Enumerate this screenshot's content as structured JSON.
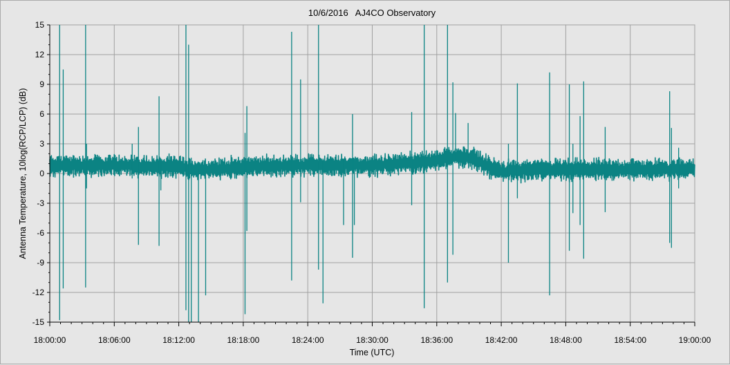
{
  "chart_data": {
    "type": "line",
    "title": "10/6/2016   AJ4CO Observatory",
    "xlabel": "Time (UTC)",
    "ylabel": "Antenna Temperature, 10log(RCP/LCP) (dB)",
    "xlim": [
      "18:00:00",
      "19:00:00"
    ],
    "x_tick_labels": [
      "18:00:00",
      "18:06:00",
      "18:12:00",
      "18:18:00",
      "18:24:00",
      "18:30:00",
      "18:36:00",
      "18:42:00",
      "18:48:00",
      "18:54:00",
      "19:00:00"
    ],
    "ylim": [
      -15,
      15
    ],
    "y_ticks": [
      15,
      12,
      9,
      6,
      3,
      0,
      -3,
      -6,
      -9,
      -12,
      -15
    ],
    "grid": true,
    "line_color": "#0b8383",
    "series": [
      {
        "baseline": [
          {
            "t": "18:00:00",
            "db": 0.8
          },
          {
            "t": "18:06:00",
            "db": 0.8
          },
          {
            "t": "18:12:00",
            "db": 0.7
          },
          {
            "t": "18:13:30",
            "db": 0.4
          },
          {
            "t": "18:15:00",
            "db": 0.4
          },
          {
            "t": "18:18:00",
            "db": 0.7
          },
          {
            "t": "18:24:00",
            "db": 0.8
          },
          {
            "t": "18:30:00",
            "db": 0.8
          },
          {
            "t": "18:33:00",
            "db": 1.0
          },
          {
            "t": "18:36:00",
            "db": 1.3
          },
          {
            "t": "18:38:00",
            "db": 1.7
          },
          {
            "t": "18:39:30",
            "db": 1.5
          },
          {
            "t": "18:41:00",
            "db": 0.6
          },
          {
            "t": "18:42:00",
            "db": 0.2
          },
          {
            "t": "18:45:00",
            "db": 0.4
          },
          {
            "t": "18:48:00",
            "db": 0.4
          },
          {
            "t": "18:54:00",
            "db": 0.4
          },
          {
            "t": "18:57:00",
            "db": 0.4
          },
          {
            "t": "19:00:00",
            "db": 0.5
          }
        ],
        "spikes": [
          {
            "t": "18:00:55",
            "max": 15,
            "min": -14.8
          },
          {
            "t": "18:01:15",
            "max": 10.5,
            "min": -11.6
          },
          {
            "t": "18:03:20",
            "max": 15,
            "min": -11.5
          },
          {
            "t": "18:03:25",
            "max": 3,
            "min": -1.5
          },
          {
            "t": "18:07:40",
            "max": 3,
            "min": -0.5
          },
          {
            "t": "18:08:15",
            "max": 4.7,
            "min": -7.2
          },
          {
            "t": "18:10:10",
            "max": 7.8,
            "min": -7.3
          },
          {
            "t": "18:10:20",
            "max": 1.5,
            "min": -1.7
          },
          {
            "t": "18:12:40",
            "max": 15,
            "min": -13.8
          },
          {
            "t": "18:12:55",
            "max": 13,
            "min": -15
          },
          {
            "t": "18:13:10",
            "max": 1.6,
            "min": -15
          },
          {
            "t": "18:13:50",
            "max": 0.5,
            "min": -15
          },
          {
            "t": "18:14:30",
            "max": 0.5,
            "min": -12.3
          },
          {
            "t": "18:18:10",
            "max": 4.1,
            "min": -14.2
          },
          {
            "t": "18:18:20",
            "max": 6.8,
            "min": -5.8
          },
          {
            "t": "18:22:30",
            "max": 14.3,
            "min": -10.8
          },
          {
            "t": "18:23:20",
            "max": 9.5,
            "min": -2.9
          },
          {
            "t": "18:25:00",
            "max": 15,
            "min": -9.7
          },
          {
            "t": "18:25:25",
            "max": 1.5,
            "min": -13.1
          },
          {
            "t": "18:27:20",
            "max": 1.5,
            "min": -5.2
          },
          {
            "t": "18:28:10",
            "max": 6,
            "min": -8.5
          },
          {
            "t": "18:28:20",
            "max": 1.5,
            "min": -5.2
          },
          {
            "t": "18:33:40",
            "max": 6.2,
            "min": -3.2
          },
          {
            "t": "18:34:50",
            "max": 15,
            "min": -13.6
          },
          {
            "t": "18:37:00",
            "max": 15,
            "min": -11
          },
          {
            "t": "18:37:30",
            "max": 9.2,
            "min": -8.2
          },
          {
            "t": "18:37:45",
            "max": 6.1,
            "min": 1.4
          },
          {
            "t": "18:38:55",
            "max": 5.1,
            "min": 1.5
          },
          {
            "t": "18:42:40",
            "max": 3,
            "min": -9
          },
          {
            "t": "18:43:30",
            "max": 9.1,
            "min": -2.5
          },
          {
            "t": "18:46:30",
            "max": 10.2,
            "min": -12.3
          },
          {
            "t": "18:48:20",
            "max": 9,
            "min": -7.8
          },
          {
            "t": "18:48:40",
            "max": 3,
            "min": -4
          },
          {
            "t": "18:49:20",
            "max": 5.8,
            "min": -5.2
          },
          {
            "t": "18:49:40",
            "max": 9.3,
            "min": -8.6
          },
          {
            "t": "18:51:40",
            "max": 4.7,
            "min": -3.9
          },
          {
            "t": "18:57:40",
            "max": 8.3,
            "min": -7
          },
          {
            "t": "18:57:50",
            "max": 4.6,
            "min": -7.5
          },
          {
            "t": "18:58:30",
            "max": 2.6,
            "min": -1.5
          }
        ]
      }
    ]
  }
}
